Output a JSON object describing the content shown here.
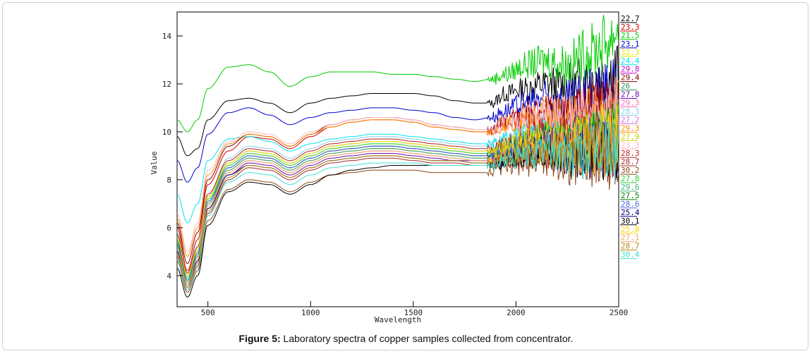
{
  "figure_label": "Figure 5:",
  "caption_text": " Laboratory spectra of copper samples collected from concentrator.",
  "chart_data": {
    "type": "line",
    "title": "",
    "xlabel": "Wavelength",
    "ylabel": "Value",
    "xlim": [
      350,
      2500
    ],
    "ylim": [
      2.7,
      15.0
    ],
    "x_ticks": [
      500,
      1000,
      1500,
      2000,
      2500
    ],
    "y_ticks": [
      4,
      6,
      8,
      10,
      12,
      14
    ],
    "grid": false,
    "legend_position": "right",
    "x": [
      350,
      400,
      450,
      500,
      600,
      700,
      800,
      900,
      1000,
      1100,
      1200,
      1300,
      1400,
      1500,
      1600,
      1700,
      1800,
      1880,
      1950,
      2050,
      2150,
      2250,
      2350,
      2450,
      2500
    ],
    "series": [
      {
        "name": "22.7",
        "color": "#000000",
        "values": [
          9.8,
          9.0,
          9.3,
          10.5,
          11.3,
          11.4,
          11.2,
          10.8,
          11.2,
          11.4,
          11.5,
          11.6,
          11.6,
          11.6,
          11.5,
          11.3,
          11.2,
          11.2,
          11.6,
          11.8,
          12.0,
          11.9,
          12.2,
          12.4,
          12.6
        ]
      },
      {
        "name": "23.3",
        "color": "#cc0000",
        "values": [
          6.0,
          4.2,
          5.5,
          7.8,
          9.2,
          9.8,
          9.7,
          9.3,
          9.8,
          10.2,
          10.4,
          10.5,
          10.5,
          10.4,
          10.2,
          10.1,
          10.0,
          10.0,
          10.4,
          10.6,
          10.8,
          10.6,
          10.9,
          11.0,
          11.1
        ]
      },
      {
        "name": "21.5",
        "color": "#00cc00",
        "values": [
          10.5,
          10.0,
          10.5,
          11.8,
          12.7,
          12.8,
          12.5,
          11.9,
          12.3,
          12.5,
          12.5,
          12.5,
          12.4,
          12.4,
          12.3,
          12.2,
          12.1,
          12.2,
          12.4,
          12.8,
          13.0,
          12.8,
          13.3,
          13.8,
          14.4
        ]
      },
      {
        "name": "23.1",
        "color": "#0000cc",
        "values": [
          8.8,
          7.9,
          8.5,
          9.9,
          10.8,
          11.0,
          10.7,
          10.3,
          10.6,
          10.8,
          10.9,
          11.0,
          11.0,
          10.9,
          10.8,
          10.6,
          10.5,
          10.6,
          10.9,
          11.2,
          11.4,
          11.2,
          11.5,
          11.7,
          11.8
        ]
      },
      {
        "name": "32.3",
        "color": "#e6e600",
        "values": [
          5.5,
          3.9,
          5.0,
          7.2,
          8.6,
          9.1,
          9.0,
          8.6,
          9.0,
          9.3,
          9.4,
          9.5,
          9.5,
          9.4,
          9.3,
          9.2,
          9.1,
          9.1,
          9.4,
          9.6,
          9.8,
          9.6,
          9.8,
          9.9,
          10.0
        ]
      },
      {
        "name": "24.4",
        "color": "#00e5ee",
        "values": [
          7.4,
          6.2,
          7.0,
          8.8,
          9.7,
          9.8,
          9.6,
          9.2,
          9.5,
          9.7,
          9.8,
          9.9,
          9.9,
          9.8,
          9.7,
          9.6,
          9.5,
          9.5,
          9.7,
          9.9,
          10.1,
          9.9,
          10.1,
          10.2,
          10.3
        ]
      },
      {
        "name": "29.8",
        "color": "#cc00cc",
        "values": [
          5.2,
          3.7,
          4.8,
          7.0,
          8.4,
          8.9,
          8.8,
          8.4,
          8.8,
          9.1,
          9.2,
          9.3,
          9.3,
          9.2,
          9.1,
          9.0,
          8.9,
          8.9,
          9.1,
          9.3,
          9.5,
          9.3,
          9.5,
          9.6,
          9.7
        ]
      },
      {
        "name": "29.4",
        "color": "#8b0000",
        "values": [
          6.2,
          4.5,
          5.8,
          8.0,
          9.4,
          9.9,
          9.8,
          9.4,
          9.9,
          10.3,
          10.5,
          10.6,
          10.6,
          10.5,
          10.3,
          10.2,
          10.1,
          10.1,
          10.5,
          10.7,
          10.9,
          10.7,
          11.0,
          11.1,
          11.2
        ]
      },
      {
        "name": "26",
        "color": "#2e8b57",
        "values": [
          5.6,
          4.0,
          5.1,
          7.3,
          8.7,
          9.2,
          9.1,
          8.7,
          9.1,
          9.4,
          9.5,
          9.6,
          9.6,
          9.5,
          9.4,
          9.3,
          9.2,
          9.2,
          9.4,
          9.6,
          9.8,
          9.6,
          9.8,
          9.9,
          10.0
        ]
      },
      {
        "name": "27.8",
        "color": "#6a0dad",
        "values": [
          5.0,
          3.5,
          4.6,
          6.8,
          8.2,
          8.7,
          8.6,
          8.2,
          8.6,
          8.9,
          9.0,
          9.1,
          9.1,
          9.0,
          8.9,
          8.8,
          8.8,
          8.8,
          9.0,
          9.2,
          9.4,
          9.2,
          9.3,
          9.4,
          9.5
        ]
      },
      {
        "name": "29.3",
        "color": "#ff69b4",
        "values": [
          5.4,
          3.8,
          4.9,
          7.1,
          8.5,
          9.0,
          8.9,
          8.5,
          8.9,
          9.2,
          9.3,
          9.4,
          9.4,
          9.3,
          9.2,
          9.1,
          9.0,
          9.0,
          9.2,
          9.4,
          9.6,
          9.4,
          9.6,
          9.7,
          9.8
        ]
      },
      {
        "name": "28.3",
        "color": "#87ceeb",
        "values": [
          5.8,
          4.1,
          5.2,
          7.4,
          8.9,
          9.4,
          9.3,
          8.9,
          9.3,
          9.6,
          9.7,
          9.8,
          9.8,
          9.7,
          9.6,
          9.5,
          9.4,
          9.4,
          9.6,
          9.8,
          10.0,
          9.8,
          10.0,
          10.1,
          10.2
        ]
      },
      {
        "name": "27.2",
        "color": "#da70d6",
        "values": [
          5.1,
          3.6,
          4.7,
          6.9,
          8.3,
          8.8,
          8.7,
          8.3,
          8.7,
          9.0,
          9.1,
          9.2,
          9.2,
          9.1,
          9.0,
          8.9,
          8.8,
          8.8,
          9.0,
          9.2,
          9.4,
          9.2,
          9.4,
          9.5,
          9.6
        ]
      },
      {
        "name": "29.3",
        "color": "#ff8c00",
        "values": [
          6.4,
          4.8,
          6.0,
          8.2,
          9.5,
          9.9,
          9.8,
          9.4,
          9.9,
          10.2,
          10.4,
          10.5,
          10.5,
          10.4,
          10.2,
          10.1,
          10.0,
          10.0,
          10.3,
          10.5,
          10.7,
          10.5,
          10.7,
          10.8,
          10.9
        ]
      },
      {
        "name": "27.9",
        "color": "#cdcd00",
        "values": [
          5.3,
          3.7,
          4.8,
          7.0,
          8.4,
          8.9,
          8.8,
          8.4,
          8.8,
          9.1,
          9.2,
          9.3,
          9.3,
          9.2,
          9.1,
          9.0,
          8.9,
          8.9,
          9.1,
          9.3,
          9.5,
          9.3,
          9.5,
          9.6,
          9.7
        ]
      },
      {
        "name": "23.3",
        "color": "#ffb6c1",
        "values": [
          6.6,
          5.0,
          6.2,
          8.4,
          9.6,
          10.0,
          9.9,
          9.5,
          10.0,
          10.3,
          10.5,
          10.6,
          10.6,
          10.5,
          10.3,
          10.2,
          10.1,
          10.1,
          10.4,
          10.6,
          10.8,
          10.6,
          10.8,
          10.9,
          11.0
        ]
      },
      {
        "name": "28.3",
        "color": "#b22222",
        "values": [
          5.7,
          4.1,
          5.2,
          7.4,
          8.8,
          9.3,
          9.2,
          8.8,
          9.2,
          9.5,
          9.6,
          9.7,
          9.7,
          9.6,
          9.5,
          9.4,
          9.3,
          9.3,
          9.5,
          9.7,
          9.9,
          9.7,
          9.9,
          10.0,
          10.1
        ]
      },
      {
        "name": "28.7",
        "color": "#a52a2a",
        "values": [
          4.8,
          3.4,
          4.4,
          6.6,
          8.0,
          8.5,
          8.4,
          8.0,
          8.4,
          8.7,
          8.8,
          8.9,
          8.9,
          8.8,
          8.7,
          8.7,
          8.6,
          8.6,
          8.8,
          9.0,
          9.2,
          9.0,
          9.1,
          9.2,
          9.3
        ]
      },
      {
        "name": "30.2",
        "color": "#8b4513",
        "values": [
          4.6,
          3.3,
          4.2,
          6.3,
          7.6,
          8.0,
          7.9,
          7.5,
          7.9,
          8.2,
          8.3,
          8.4,
          8.4,
          8.4,
          8.3,
          8.3,
          8.3,
          8.3,
          8.5,
          8.7,
          8.9,
          8.7,
          8.8,
          8.9,
          9.0
        ]
      },
      {
        "name": "27.8",
        "color": "#32cd32",
        "values": [
          5.5,
          3.9,
          5.0,
          7.2,
          8.6,
          9.1,
          9.0,
          8.6,
          9.0,
          9.3,
          9.4,
          9.5,
          9.5,
          9.4,
          9.3,
          9.2,
          9.1,
          9.1,
          9.3,
          9.5,
          9.7,
          9.5,
          9.7,
          9.8,
          9.9
        ]
      },
      {
        "name": "29.6",
        "color": "#3cb371",
        "values": [
          5.2,
          3.7,
          4.8,
          7.0,
          8.4,
          8.9,
          8.8,
          8.4,
          8.8,
          9.1,
          9.2,
          9.3,
          9.3,
          9.2,
          9.1,
          9.0,
          8.9,
          8.9,
          9.1,
          9.3,
          9.5,
          9.3,
          9.5,
          9.6,
          9.7
        ]
      },
      {
        "name": "27.5",
        "color": "#008000",
        "values": [
          5.3,
          3.8,
          4.9,
          7.1,
          8.5,
          9.0,
          8.9,
          8.5,
          8.9,
          9.2,
          9.3,
          9.4,
          9.4,
          9.3,
          9.2,
          9.1,
          9.0,
          9.0,
          9.2,
          9.4,
          9.6,
          9.4,
          9.6,
          9.7,
          9.8
        ]
      },
      {
        "name": "28.6",
        "color": "#4169e1",
        "values": [
          5.4,
          3.8,
          4.9,
          7.1,
          8.5,
          9.0,
          8.9,
          8.5,
          8.9,
          9.2,
          9.3,
          9.4,
          9.4,
          9.3,
          9.2,
          9.1,
          9.0,
          9.0,
          9.2,
          9.4,
          9.6,
          9.4,
          9.5,
          9.6,
          9.7
        ]
      },
      {
        "name": "25.4",
        "color": "#000080",
        "values": [
          5.0,
          3.6,
          4.6,
          6.8,
          8.2,
          8.6,
          8.5,
          8.1,
          8.5,
          8.8,
          8.9,
          9.0,
          9.0,
          8.9,
          8.8,
          8.8,
          8.7,
          8.7,
          8.9,
          9.1,
          9.3,
          9.1,
          9.2,
          9.3,
          9.4
        ]
      },
      {
        "name": "30.1",
        "color": "#000000",
        "values": [
          4.3,
          3.1,
          4.0,
          6.1,
          7.5,
          7.9,
          7.8,
          7.4,
          7.8,
          8.2,
          8.4,
          8.5,
          8.6,
          8.6,
          8.6,
          8.6,
          8.6,
          8.6,
          8.8,
          9.0,
          9.2,
          9.0,
          9.1,
          9.2,
          9.3
        ]
      },
      {
        "name": "25.8",
        "color": "#ffd700",
        "values": [
          5.6,
          4.0,
          5.1,
          7.3,
          8.7,
          9.2,
          9.1,
          8.7,
          9.1,
          9.4,
          9.5,
          9.6,
          9.6,
          9.5,
          9.4,
          9.3,
          9.2,
          9.2,
          9.4,
          9.6,
          9.8,
          9.6,
          9.8,
          9.9,
          10.0
        ]
      },
      {
        "name": "27.1",
        "color": "#f4a460",
        "values": [
          5.1,
          3.6,
          4.7,
          6.9,
          8.3,
          8.8,
          8.7,
          8.3,
          8.7,
          9.0,
          9.1,
          9.2,
          9.2,
          9.1,
          9.0,
          8.9,
          8.8,
          8.8,
          9.0,
          9.2,
          9.4,
          9.2,
          9.4,
          9.5,
          9.6
        ]
      },
      {
        "name": "28.7",
        "color": "#b8860b",
        "values": [
          4.9,
          3.5,
          4.5,
          6.7,
          8.1,
          8.6,
          8.5,
          8.1,
          8.5,
          8.8,
          8.9,
          9.0,
          9.0,
          8.9,
          8.8,
          8.8,
          8.7,
          8.7,
          8.9,
          9.1,
          9.3,
          9.1,
          9.2,
          9.3,
          9.4
        ]
      },
      {
        "name": "30.4",
        "color": "#40e0d0",
        "values": [
          4.7,
          3.4,
          4.3,
          6.5,
          7.9,
          8.3,
          8.2,
          7.8,
          8.2,
          8.5,
          8.6,
          8.7,
          8.7,
          8.7,
          8.6,
          8.6,
          8.6,
          8.6,
          8.8,
          9.0,
          9.2,
          9.0,
          9.1,
          9.2,
          9.3
        ]
      }
    ]
  }
}
